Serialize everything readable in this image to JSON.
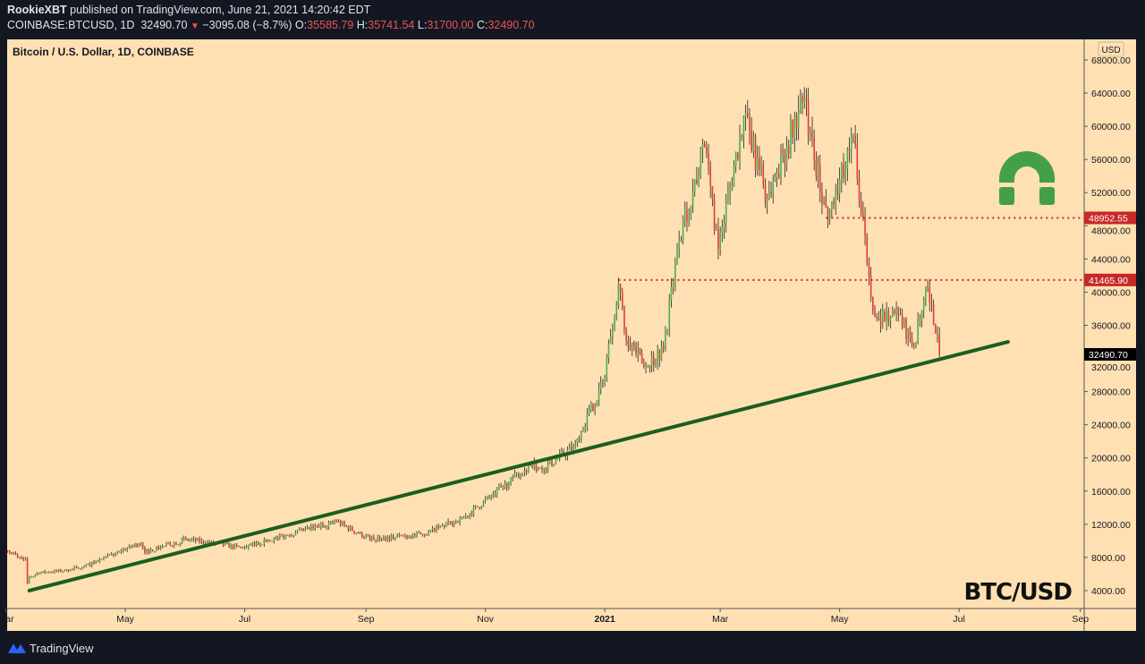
{
  "header": {
    "publisher": "RookieXBT",
    "published_text": "published on TradingView.com, June 21, 2021 14:20:42 EDT",
    "symbol": "COINBASE:BTCUSD, 1D",
    "last": "32490.70",
    "change": "−3095.08 (−8.7%)",
    "open_label": "O:",
    "open": "35585.79",
    "high_label": "H:",
    "high": "35741.54",
    "low_label": "L:",
    "low": "31700.00",
    "close_label": "C:",
    "close": "32490.70"
  },
  "footer": {
    "brand": "TradingView"
  },
  "colors": {
    "background": "#ffe0b2",
    "up": "#4caf50",
    "down": "#e53935",
    "trendline": "#1b5e20",
    "level": "#c62828",
    "logo": "#43a047"
  },
  "chart_data": {
    "type": "candlestick",
    "title": "Bitcoin / U.S. Dollar, 1D, COINBASE",
    "watermark": "BTC/USD",
    "currency_label": "USD",
    "ylim": [
      1000,
      70000
    ],
    "y_ticks": [
      "68000.00",
      "64000.00",
      "60000.00",
      "56000.00",
      "52000.00",
      "48000.00",
      "44000.00",
      "40000.00",
      "36000.00",
      "32000.00",
      "28000.00",
      "24000.00",
      "20000.00",
      "16000.00",
      "12000.00",
      "8000.00",
      "4000.00"
    ],
    "x_ticks": [
      {
        "label": "Mar",
        "date": "2020-03-01"
      },
      {
        "label": "May",
        "date": "2020-05-01"
      },
      {
        "label": "Jul",
        "date": "2020-07-01"
      },
      {
        "label": "Sep",
        "date": "2020-09-01"
      },
      {
        "label": "Nov",
        "date": "2020-11-01"
      },
      {
        "label": "2021",
        "date": "2021-01-01"
      },
      {
        "label": "Mar",
        "date": "2021-03-01"
      },
      {
        "label": "May",
        "date": "2021-05-01"
      },
      {
        "label": "Jul",
        "date": "2021-07-01"
      },
      {
        "label": "Sep",
        "date": "2021-09-01"
      }
    ],
    "close_path": [
      [
        "2020-03-02",
        8800
      ],
      [
        "2020-03-08",
        8000
      ],
      [
        "2020-03-11",
        7900
      ],
      [
        "2020-03-12",
        4900
      ],
      [
        "2020-03-13",
        5600
      ],
      [
        "2020-03-19",
        6200
      ],
      [
        "2020-03-31",
        6400
      ],
      [
        "2020-04-10",
        6900
      ],
      [
        "2020-04-29",
        8800
      ],
      [
        "2020-05-09",
        9800
      ],
      [
        "2020-05-11",
        8600
      ],
      [
        "2020-06-01",
        10200
      ],
      [
        "2020-06-30",
        9140
      ],
      [
        "2020-07-27",
        11000
      ],
      [
        "2020-08-17",
        12300
      ],
      [
        "2020-09-03",
        10200
      ],
      [
        "2020-09-30",
        10780
      ],
      [
        "2020-10-21",
        12800
      ],
      [
        "2020-11-05",
        15600
      ],
      [
        "2020-11-24",
        19100
      ],
      [
        "2020-12-01",
        18800
      ],
      [
        "2020-12-16",
        21300
      ],
      [
        "2020-12-31",
        29000
      ],
      [
        "2021-01-08",
        41000
      ],
      [
        "2021-01-11",
        35500
      ],
      [
        "2021-01-21",
        31000
      ],
      [
        "2021-01-31",
        33100
      ],
      [
        "2021-02-08",
        46200
      ],
      [
        "2021-02-21",
        57500
      ],
      [
        "2021-02-28",
        45200
      ],
      [
        "2021-03-13",
        61200
      ],
      [
        "2021-03-25",
        51300
      ],
      [
        "2021-04-13",
        63500
      ],
      [
        "2021-04-18",
        56000
      ],
      [
        "2021-04-25",
        49000
      ],
      [
        "2021-05-08",
        58900
      ],
      [
        "2021-05-12",
        49500
      ],
      [
        "2021-05-19",
        37000
      ],
      [
        "2021-05-31",
        37300
      ],
      [
        "2021-06-08",
        33500
      ],
      [
        "2021-06-15",
        40500
      ],
      [
        "2021-06-21",
        32490.7
      ]
    ],
    "trendline": {
      "from": [
        "2020-03-13",
        4000
      ],
      "to": [
        "2021-07-26",
        34000
      ]
    },
    "levels": [
      {
        "value": 48952.55,
        "label": "48952.55",
        "from": "2021-04-24"
      },
      {
        "value": 41465.9,
        "label": "41465.90",
        "from": "2021-01-08"
      }
    ],
    "last_price_label": "32490.70"
  }
}
